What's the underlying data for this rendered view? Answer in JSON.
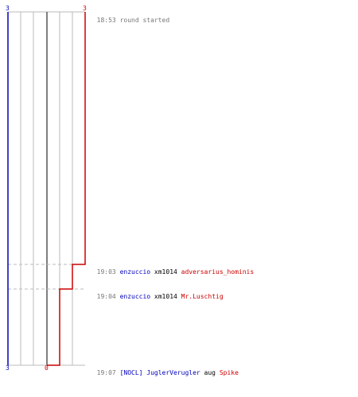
{
  "scores": {
    "blue_top": "3",
    "red_top": "3",
    "blue_bottom": "3",
    "red_bottom": "0"
  },
  "colors": {
    "blue": "#0000bb",
    "red": "#cc0000",
    "grid": "#bbbbbb",
    "center": "#555555",
    "dash": "#bbbbbb",
    "time": "#777777"
  },
  "events": [
    {
      "time": "18:53",
      "text": "round started",
      "type": "status"
    },
    {
      "time": "19:03",
      "killer": "enzuccio",
      "weapon": "xm1014",
      "victim": "adversarius_hominis",
      "type": "kill"
    },
    {
      "time": "19:04",
      "killer": "enzuccio",
      "weapon": "xm1014",
      "victim": "Mr.Luschtig",
      "type": "kill"
    },
    {
      "time": "19:07",
      "killer": "[NOCL] JuglerVerugler",
      "weapon": "aug",
      "victim": "Spike",
      "type": "kill"
    }
  ]
}
